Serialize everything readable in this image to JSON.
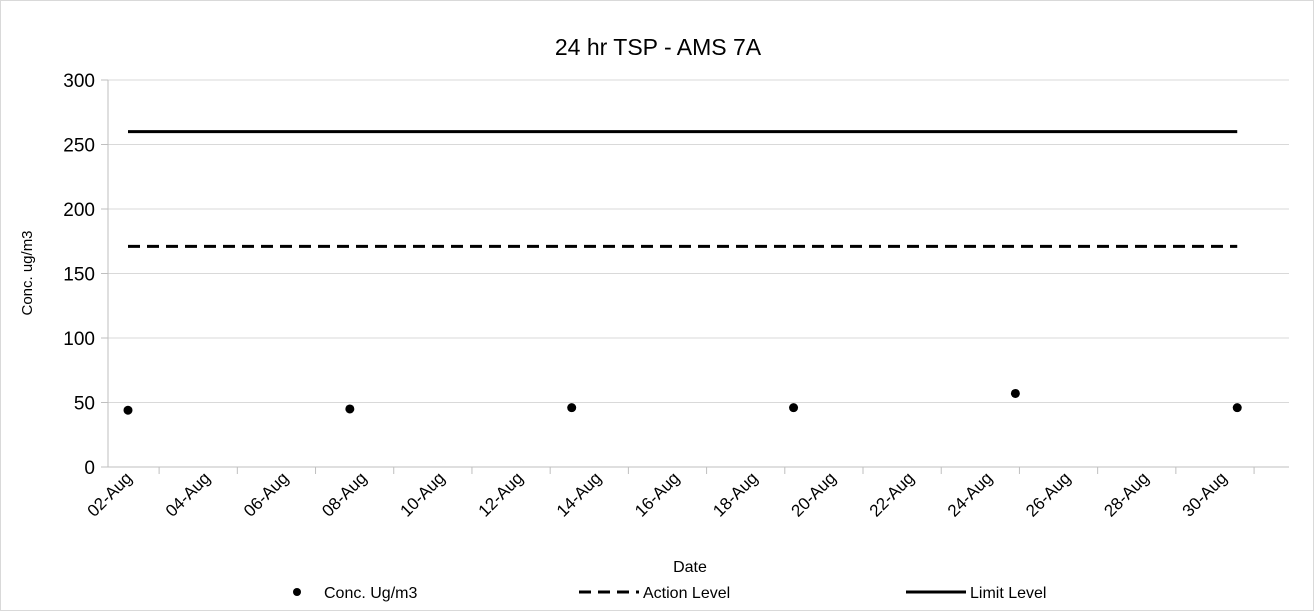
{
  "chart_data": {
    "type": "scatter",
    "title": "24 hr TSP - AMS 7A",
    "xlabel": "Date",
    "ylabel": "Conc. ug/m3",
    "ylim": [
      0,
      300
    ],
    "yticks": [
      "0",
      "50",
      "100",
      "150",
      "200",
      "250",
      "300"
    ],
    "xlim": [
      "2025-08-01",
      "2025-08-31"
    ],
    "xticks": [
      "02-Aug",
      "04-Aug",
      "06-Aug",
      "08-Aug",
      "10-Aug",
      "12-Aug",
      "14-Aug",
      "16-Aug",
      "18-Aug",
      "20-Aug",
      "22-Aug",
      "24-Aug",
      "26-Aug",
      "28-Aug",
      "30-Aug"
    ],
    "grid": true,
    "legend_position": "bottom",
    "series": [
      {
        "name": "Conc. Ug/m3",
        "style": "markers",
        "color": "#000000",
        "x": [
          "2025-08-01",
          "2025-08-07",
          "2025-08-13",
          "2025-08-19",
          "2025-08-25",
          "2025-08-31"
        ],
        "y": [
          44,
          45,
          46,
          46,
          57,
          46
        ]
      },
      {
        "name": "Action Level",
        "style": "dashed",
        "color": "#000000",
        "x": [
          "2025-08-01",
          "2025-08-31"
        ],
        "y": [
          171,
          171
        ]
      },
      {
        "name": "Limit Level",
        "style": "solid",
        "color": "#000000",
        "x": [
          "2025-08-01",
          "2025-08-31"
        ],
        "y": [
          260,
          260
        ]
      }
    ]
  }
}
